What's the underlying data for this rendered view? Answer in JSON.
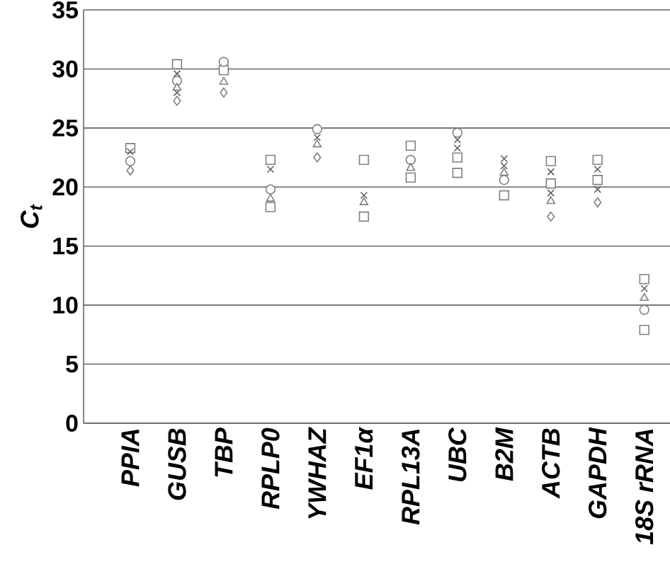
{
  "chart_data": {
    "type": "scatter",
    "ylabel": "C$_{t}$",
    "categories": [
      "PPIA",
      "GUSB",
      "TBP",
      "RPLP0",
      "YWHAZ",
      "EF1α",
      "RPL13A",
      "UBC",
      "B2M",
      "ACTB",
      "GAPDH",
      "18S rRNA"
    ],
    "ylim": [
      0,
      35
    ],
    "yticks": [
      0,
      5,
      10,
      15,
      20,
      25,
      30,
      35
    ],
    "grid": "y",
    "series": [
      {
        "color": "#808080",
        "marker": "square",
        "values": [
          23.3,
          30.4,
          29.9,
          22.3,
          null,
          22.3,
          23.5,
          22.5,
          null,
          22.2,
          22.3,
          12.2
        ]
      },
      {
        "color": "#808080",
        "marker": "square",
        "values": [
          null,
          null,
          null,
          18.3,
          null,
          17.5,
          20.8,
          21.2,
          19.3,
          20.3,
          20.6,
          7.9
        ]
      },
      {
        "color": "#606060",
        "marker": "cross",
        "values": [
          23.0,
          29.6,
          null,
          21.5,
          24.2,
          19.3,
          null,
          24.0,
          22.4,
          21.3,
          21.5,
          11.4
        ]
      },
      {
        "color": "#606060",
        "marker": "cross",
        "values": [
          null,
          28.0,
          null,
          null,
          null,
          null,
          null,
          23.3,
          21.8,
          19.5,
          19.8,
          null
        ]
      },
      {
        "color": "#808080",
        "marker": "circle",
        "values": [
          22.2,
          29.0,
          30.6,
          19.8,
          24.9,
          null,
          22.3,
          24.6,
          20.6,
          null,
          null,
          9.6
        ]
      },
      {
        "color": "#808080",
        "marker": "triangle",
        "values": [
          null,
          28.4,
          28.9,
          19.0,
          23.6,
          18.7,
          21.6,
          null,
          21.2,
          18.8,
          null,
          10.6
        ]
      },
      {
        "color": "#808080",
        "marker": "diamond",
        "values": [
          21.4,
          27.3,
          28.0,
          null,
          22.5,
          null,
          null,
          null,
          null,
          17.5,
          18.7,
          null
        ]
      }
    ]
  }
}
